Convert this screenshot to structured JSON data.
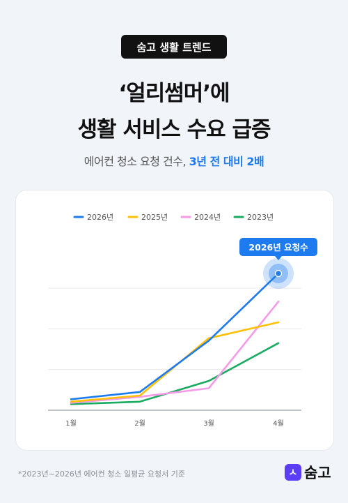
{
  "badge": "숨고 생활 트렌드",
  "headline": {
    "line1": "‘얼리썸머’에",
    "line2": "생활 서비스 수요 급증"
  },
  "subtitle": {
    "prefix": "에어컨 청소 요청 건수, ",
    "highlight": "3년 전 대비 2배"
  },
  "footnote": "*2023년~2026년 에어컨 청소 일평균 요청서 기준",
  "logo": {
    "mark": "ㅅ",
    "text": "숨고"
  },
  "chart_data": {
    "type": "line",
    "categories": [
      "1월",
      "2월",
      "3월",
      "4월"
    ],
    "ylim": [
      0,
      100
    ],
    "grid": true,
    "legend": "top",
    "series": [
      {
        "name": "2026년",
        "color": "#1e7bef",
        "values": [
          9,
          15,
          57,
          112
        ]
      },
      {
        "name": "2025년",
        "color": "#ffc107",
        "values": [
          7,
          12,
          59,
          72
        ]
      },
      {
        "name": "2024년",
        "color": "#f59ae6",
        "values": [
          6,
          11,
          18,
          89
        ]
      },
      {
        "name": "2023년",
        "color": "#1aaa60",
        "values": [
          5,
          7,
          24,
          55
        ]
      }
    ],
    "annotation": {
      "label": "2026년 요청수",
      "series": 0,
      "point": 3
    }
  }
}
